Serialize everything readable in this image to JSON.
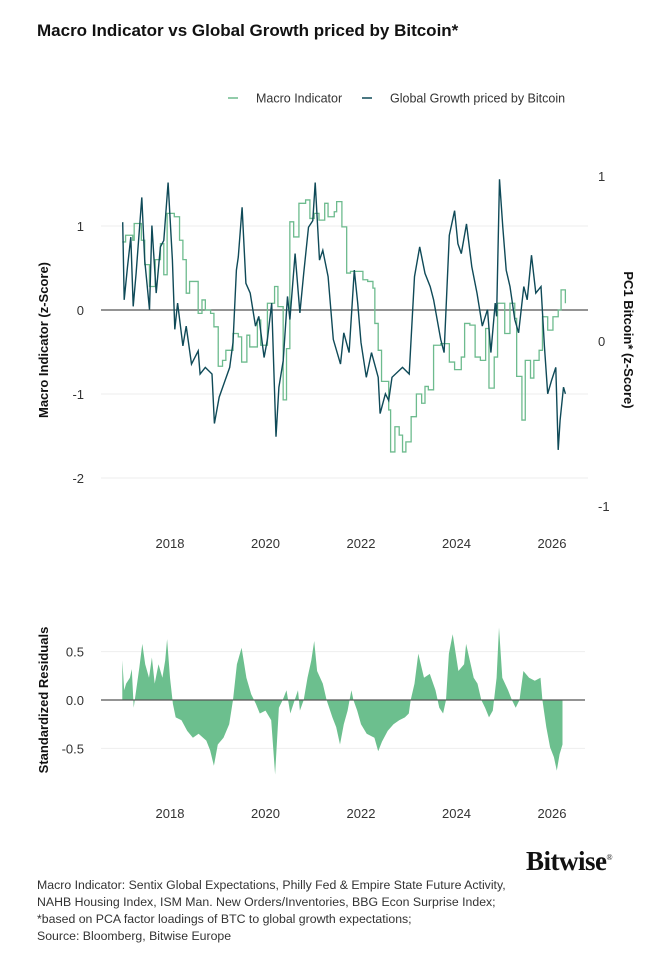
{
  "title": "Macro Indicator vs Global Growth priced by Bitcoin*",
  "colors": {
    "macro": "#6dbb8e",
    "bitcoin": "#0f4a58",
    "residual": "#6cbf8e",
    "zero": "#555555",
    "grid": "#eeeeee"
  },
  "chart_data": [
    {
      "type": "line",
      "legend": [
        "Macro Indicator",
        "Global Growth priced by Bitcoin"
      ],
      "legend_placement": "top-right",
      "ylabel": "Macro Indicator (z-Score)",
      "ylabel_right": "PC1 Bitcoin* (z-Score)",
      "x_ticks": [
        "2018",
        "2020",
        "2022",
        "2024",
        "2026"
      ],
      "y_ticks": [
        "1",
        "0",
        "-1",
        "-2"
      ],
      "y_ticks_right": [
        "1",
        "0",
        "-1"
      ],
      "xlim": [
        2016.6,
        2026.8
      ],
      "ylim": [
        -2.4,
        1.67
      ],
      "ylim_right": [
        -1.02,
        1.04
      ],
      "grid": true,
      "series": [
        {
          "name": "Macro Indicator",
          "axis": "left",
          "step": true,
          "x": [
            2017.0,
            2017.07,
            2017.22,
            2017.25,
            2017.4,
            2017.47,
            2017.57,
            2017.69,
            2017.8,
            2017.87,
            2017.94,
            2018.09,
            2018.2,
            2018.27,
            2018.34,
            2018.41,
            2018.59,
            2018.67,
            2018.74,
            2018.85,
            2018.92,
            2019.01,
            2019.1,
            2019.17,
            2019.32,
            2019.43,
            2019.5,
            2019.61,
            2019.67,
            2019.83,
            2019.9,
            2020.04,
            2020.19,
            2020.26,
            2020.37,
            2020.44,
            2020.51,
            2020.59,
            2020.7,
            2020.84,
            2020.93,
            2021.02,
            2021.12,
            2021.24,
            2021.31,
            2021.44,
            2021.49,
            2021.6,
            2021.7,
            2021.78,
            2021.93,
            2022.04,
            2022.14,
            2022.25,
            2022.29,
            2022.36,
            2022.43,
            2022.58,
            2022.62,
            2022.71,
            2022.8,
            2022.87,
            2022.94,
            2023.05,
            2023.16,
            2023.27,
            2023.34,
            2023.41,
            2023.52,
            2023.67,
            2023.85,
            2023.96,
            2024.1,
            2024.17,
            2024.28,
            2024.39,
            2024.5,
            2024.61,
            2024.68,
            2024.79,
            2024.86,
            2025.01,
            2025.12,
            2025.22,
            2025.26,
            2025.37,
            2025.44,
            2025.55,
            2025.62,
            2025.73,
            2025.8,
            2025.91,
            2026.02,
            2026.13,
            2026.19,
            2026.28
          ],
          "y": [
            0.81,
            0.89,
            0.83,
            1.03,
            0.83,
            0.54,
            0.28,
            0.6,
            0.79,
            0.42,
            1.15,
            1.11,
            0.83,
            0.6,
            0.2,
            0.34,
            -0.04,
            0.12,
            0.0,
            -0.04,
            -0.2,
            -0.67,
            -0.6,
            -0.48,
            -0.28,
            -0.32,
            -0.62,
            -0.3,
            -0.44,
            -0.12,
            -0.42,
            0.08,
            0.28,
            0.04,
            -1.07,
            -0.46,
            1.05,
            0.87,
            1.27,
            1.31,
            1.09,
            1.15,
            1.07,
            1.27,
            1.11,
            1.17,
            1.29,
            0.99,
            0.44,
            0.46,
            0.46,
            0.36,
            0.34,
            0.26,
            -0.16,
            -0.48,
            -0.85,
            -1.19,
            -1.69,
            -1.39,
            -1.49,
            -1.69,
            -1.57,
            -1.27,
            -1.0,
            -1.11,
            -0.91,
            -0.95,
            -0.42,
            -0.4,
            -0.62,
            -0.71,
            -0.56,
            -0.16,
            -0.18,
            -0.56,
            -0.6,
            -0.22,
            -0.93,
            -0.56,
            0.08,
            -0.28,
            0.08,
            -0.1,
            -0.79,
            -1.31,
            -0.6,
            -0.81,
            -0.6,
            -0.48,
            -0.08,
            -0.24,
            -0.08,
            0.0,
            0.24,
            0.08
          ]
        },
        {
          "name": "Global Growth priced by Bitcoin",
          "axis": "right",
          "x": [
            2017.01,
            2017.04,
            2017.11,
            2017.18,
            2017.23,
            2017.29,
            2017.41,
            2017.47,
            2017.57,
            2017.62,
            2017.71,
            2017.8,
            2017.87,
            2017.96,
            2018.05,
            2018.1,
            2018.16,
            2018.27,
            2018.34,
            2018.45,
            2018.59,
            2018.63,
            2018.74,
            2018.88,
            2018.93,
            2019.03,
            2019.25,
            2019.32,
            2019.39,
            2019.43,
            2019.51,
            2019.59,
            2019.68,
            2019.79,
            2019.86,
            2019.97,
            2020.04,
            2020.13,
            2020.22,
            2020.28,
            2020.37,
            2020.46,
            2020.51,
            2020.62,
            2020.72,
            2020.8,
            2020.9,
            2020.99,
            2021.04,
            2021.13,
            2021.2,
            2021.31,
            2021.42,
            2021.57,
            2021.64,
            2021.75,
            2021.86,
            2021.93,
            2022.0,
            2022.11,
            2022.22,
            2022.36,
            2022.4,
            2022.51,
            2022.58,
            2022.65,
            2022.87,
            2023.01,
            2023.12,
            2023.23,
            2023.34,
            2023.45,
            2023.52,
            2023.67,
            2023.74,
            2023.85,
            2023.96,
            2024.03,
            2024.1,
            2024.21,
            2024.32,
            2024.43,
            2024.54,
            2024.65,
            2024.72,
            2024.81,
            2024.84,
            2024.9,
            2024.97,
            2025.04,
            2025.12,
            2025.22,
            2025.3,
            2025.41,
            2025.48,
            2025.57,
            2025.66,
            2025.77,
            2025.84,
            2025.91,
            2025.99,
            2026.08,
            2026.13,
            2026.17,
            2026.24,
            2026.28
          ],
          "y": [
            0.72,
            0.25,
            0.45,
            0.63,
            0.21,
            0.41,
            0.87,
            0.49,
            0.19,
            0.7,
            0.29,
            0.57,
            0.61,
            0.96,
            0.49,
            0.07,
            0.23,
            -0.03,
            0.09,
            -0.14,
            -0.06,
            -0.2,
            -0.16,
            -0.2,
            -0.5,
            -0.34,
            -0.16,
            -0.01,
            0.43,
            0.51,
            0.81,
            0.35,
            0.29,
            0.09,
            0.15,
            -0.1,
            0.01,
            0.23,
            -0.58,
            -0.28,
            -0.12,
            0.27,
            0.13,
            0.53,
            0.17,
            0.41,
            0.69,
            0.73,
            0.96,
            0.49,
            0.55,
            0.39,
            0.01,
            -0.14,
            0.05,
            -0.07,
            0.43,
            0.23,
            -0.01,
            -0.22,
            -0.07,
            -0.22,
            -0.44,
            -0.32,
            -0.36,
            -0.22,
            -0.16,
            -0.2,
            0.39,
            0.57,
            0.41,
            0.33,
            0.25,
            0.01,
            -0.07,
            0.64,
            0.79,
            0.59,
            0.53,
            0.71,
            0.45,
            0.29,
            0.09,
            0.19,
            -0.07,
            0.23,
            0.15,
            0.98,
            0.69,
            0.43,
            0.33,
            0.13,
            0.05,
            0.33,
            0.25,
            0.52,
            0.29,
            0.33,
            -0.03,
            -0.32,
            -0.24,
            -0.16,
            -0.66,
            -0.48,
            -0.28,
            -0.32
          ]
        }
      ]
    },
    {
      "type": "area",
      "ylabel": "Standardized Residuals",
      "x_ticks": [
        "2018",
        "2020",
        "2022",
        "2024",
        "2026"
      ],
      "y_ticks": [
        "0.5",
        "0.0",
        "-0.5"
      ],
      "xlim": [
        2016.6,
        2026.8
      ],
      "ylim": [
        -0.93,
        0.83
      ],
      "grid": true,
      "series": [
        {
          "x": [
            2017.0,
            2017.04,
            2017.08,
            2017.16,
            2017.2,
            2017.24,
            2017.28,
            2017.36,
            2017.42,
            2017.48,
            2017.56,
            2017.62,
            2017.68,
            2017.76,
            2017.84,
            2017.9,
            2017.94,
            2018.0,
            2018.06,
            2018.12,
            2018.24,
            2018.36,
            2018.48,
            2018.6,
            2018.76,
            2018.84,
            2018.92,
            2019.0,
            2019.12,
            2019.24,
            2019.32,
            2019.4,
            2019.5,
            2019.6,
            2019.7,
            2019.8,
            2019.88,
            2020.0,
            2020.12,
            2020.2,
            2020.28,
            2020.36,
            2020.44,
            2020.52,
            2020.6,
            2020.68,
            2020.72,
            2020.8,
            2020.88,
            2020.96,
            2021.02,
            2021.08,
            2021.2,
            2021.28,
            2021.4,
            2021.48,
            2021.56,
            2021.64,
            2021.72,
            2021.8,
            2021.84,
            2021.92,
            2022.0,
            2022.12,
            2022.28,
            2022.36,
            2022.44,
            2022.56,
            2022.68,
            2022.8,
            2022.92,
            2023.0,
            2023.04,
            2023.12,
            2023.2,
            2023.32,
            2023.44,
            2023.56,
            2023.64,
            2023.72,
            2023.78,
            2023.84,
            2023.92,
            2024.04,
            2024.16,
            2024.2,
            2024.36,
            2024.44,
            2024.52,
            2024.6,
            2024.68,
            2024.76,
            2024.84,
            2024.89,
            2024.96,
            2025.08,
            2025.16,
            2025.24,
            2025.32,
            2025.4,
            2025.52,
            2025.64,
            2025.76,
            2025.8,
            2025.88,
            2025.96,
            2026.04,
            2026.1,
            2026.16,
            2026.22
          ],
          "y": [
            0.41,
            0.1,
            0.17,
            0.23,
            0.32,
            -0.08,
            0.06,
            0.34,
            0.58,
            0.37,
            0.23,
            0.44,
            0.17,
            0.37,
            0.23,
            0.41,
            0.63,
            0.23,
            -0.04,
            -0.18,
            -0.21,
            -0.32,
            -0.39,
            -0.35,
            -0.42,
            -0.52,
            -0.68,
            -0.46,
            -0.39,
            -0.25,
            0.0,
            0.37,
            0.54,
            0.23,
            0.06,
            -0.04,
            -0.14,
            -0.11,
            -0.21,
            -0.77,
            -0.08,
            0.0,
            0.1,
            -0.14,
            -0.02,
            0.1,
            -0.11,
            0.0,
            0.23,
            0.41,
            0.61,
            0.3,
            0.17,
            0.0,
            -0.18,
            -0.28,
            -0.46,
            -0.25,
            -0.11,
            0.1,
            0.0,
            -0.11,
            -0.25,
            -0.35,
            -0.39,
            -0.53,
            -0.43,
            -0.32,
            -0.25,
            -0.21,
            -0.18,
            -0.14,
            0.0,
            0.17,
            0.48,
            0.23,
            0.27,
            0.1,
            -0.08,
            -0.14,
            0.0,
            0.48,
            0.68,
            0.3,
            0.37,
            0.58,
            0.23,
            0.17,
            0.0,
            -0.08,
            -0.18,
            -0.11,
            0.23,
            0.75,
            0.23,
            0.1,
            0.0,
            -0.08,
            0.0,
            0.3,
            0.23,
            0.2,
            0.23,
            0.0,
            -0.28,
            -0.49,
            -0.59,
            -0.73,
            -0.56,
            -0.46
          ]
        }
      ]
    }
  ],
  "footnote": [
    "Macro Indicator: Sentix Global Expectations, Philly Fed & Empire State Future Activity,",
    "NAHB Housing Index, ISM Man. New Orders/Inventories, BBG Econ Surprise Index;",
    "*based on PCA factor loadings of BTC to global growth expectations;",
    "Source: Bloomberg, Bitwise Europe"
  ],
  "logo": "Bitwise"
}
